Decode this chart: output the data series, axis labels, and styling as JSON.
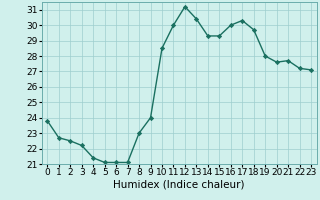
{
  "x": [
    0,
    1,
    2,
    3,
    4,
    5,
    6,
    7,
    8,
    9,
    10,
    11,
    12,
    13,
    14,
    15,
    16,
    17,
    18,
    19,
    20,
    21,
    22,
    23
  ],
  "y": [
    23.8,
    22.7,
    22.5,
    22.2,
    21.4,
    21.1,
    21.1,
    21.1,
    23.0,
    24.0,
    28.5,
    30.0,
    31.2,
    30.4,
    29.3,
    29.3,
    30.0,
    30.3,
    29.7,
    28.0,
    27.6,
    27.7,
    27.2,
    27.1
  ],
  "line_color": "#1a7060",
  "marker": "D",
  "marker_size": 2.2,
  "bg_color": "#d0f0ec",
  "grid_color": "#9ecece",
  "xlabel": "Humidex (Indice chaleur)",
  "xlabel_fontsize": 7.5,
  "xlim": [
    -0.5,
    23.5
  ],
  "ylim": [
    21,
    31.5
  ],
  "yticks": [
    21,
    22,
    23,
    24,
    25,
    26,
    27,
    28,
    29,
    30,
    31
  ],
  "xticks": [
    0,
    1,
    2,
    3,
    4,
    5,
    6,
    7,
    8,
    9,
    10,
    11,
    12,
    13,
    14,
    15,
    16,
    17,
    18,
    19,
    20,
    21,
    22,
    23
  ],
  "tick_fontsize": 6.5,
  "linewidth": 1.0
}
